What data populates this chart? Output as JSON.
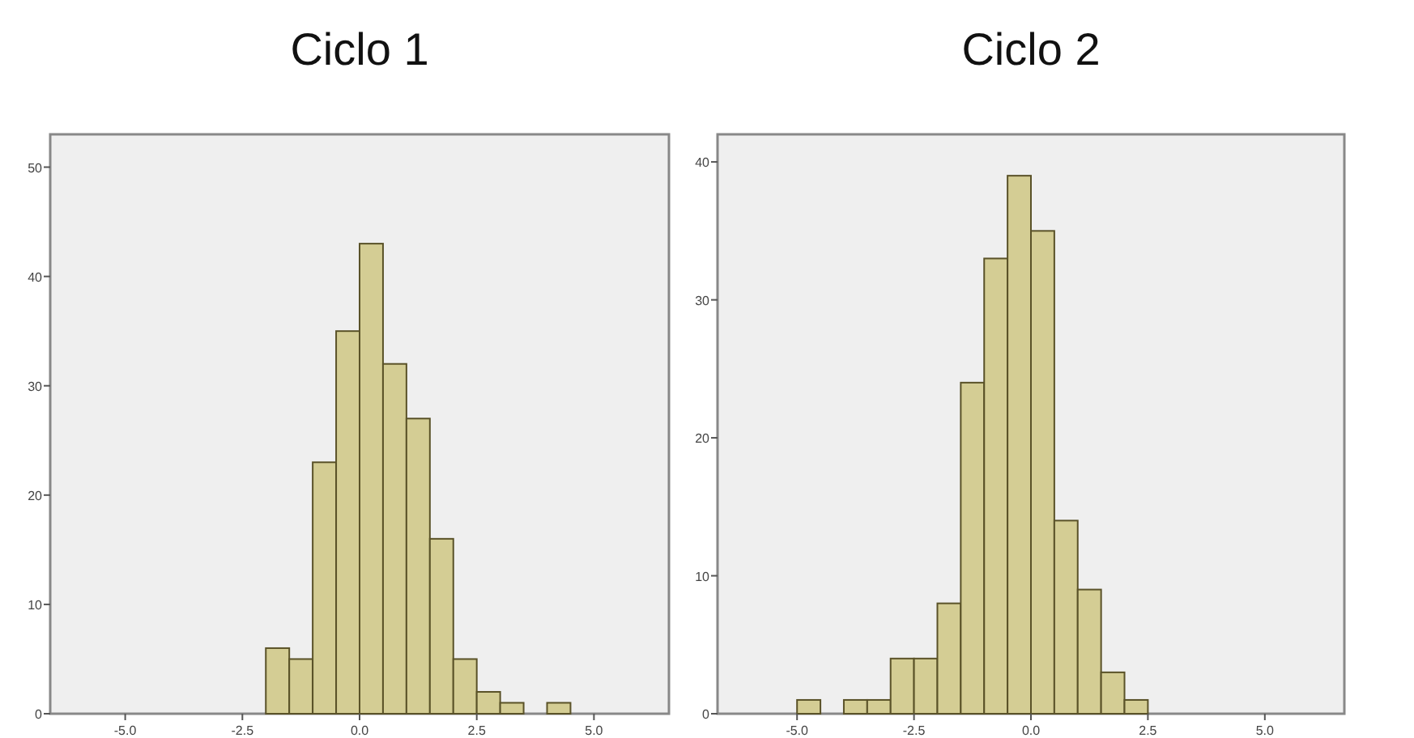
{
  "chart_data": [
    {
      "type": "histogram",
      "title": "Ciclo 1",
      "bins": [
        -2.0,
        -1.5,
        -1.0,
        -0.5,
        0.0,
        0.5,
        1.0,
        1.5,
        2.0,
        2.5,
        3.0,
        3.5,
        4.0,
        4.5
      ],
      "values": [
        6,
        5,
        23,
        35,
        43,
        32,
        27,
        16,
        5,
        2,
        1,
        0,
        1
      ],
      "color": "#d4cd94",
      "xlim": [
        -6.6,
        6.6
      ],
      "xticks": [
        {
          "value": -5,
          "label": "-5.0"
        },
        {
          "value": -2.5,
          "label": "-2.5"
        },
        {
          "value": 0,
          "label": "0.0"
        },
        {
          "value": 2.5,
          "label": "2.5"
        },
        {
          "value": 5,
          "label": "5.0"
        }
      ],
      "ylim": [
        0,
        53
      ],
      "yticks": [
        0,
        10,
        20,
        30,
        40,
        50
      ]
    },
    {
      "type": "histogram",
      "title": "Ciclo 2",
      "bins": [
        -5.0,
        -4.5,
        -4.0,
        -3.5,
        -3.0,
        -2.5,
        -2.0,
        -1.5,
        -1.0,
        -0.5,
        0.0,
        0.5,
        1.0,
        1.5,
        2.0,
        2.5
      ],
      "values": [
        1,
        0,
        1,
        1,
        4,
        4,
        8,
        24,
        33,
        39,
        35,
        14,
        9,
        3,
        1
      ],
      "color": "#d4cd94",
      "xlim": [
        -6.7,
        6.7
      ],
      "xticks": [
        {
          "value": -5,
          "label": "-5.0"
        },
        {
          "value": -2.5,
          "label": "-2.5"
        },
        {
          "value": 0,
          "label": "0.0"
        },
        {
          "value": 2.5,
          "label": "2.5"
        },
        {
          "value": 5,
          "label": "5.0"
        }
      ],
      "ylim": [
        0,
        42
      ],
      "yticks": [
        0,
        10,
        20,
        30,
        40
      ]
    }
  ]
}
